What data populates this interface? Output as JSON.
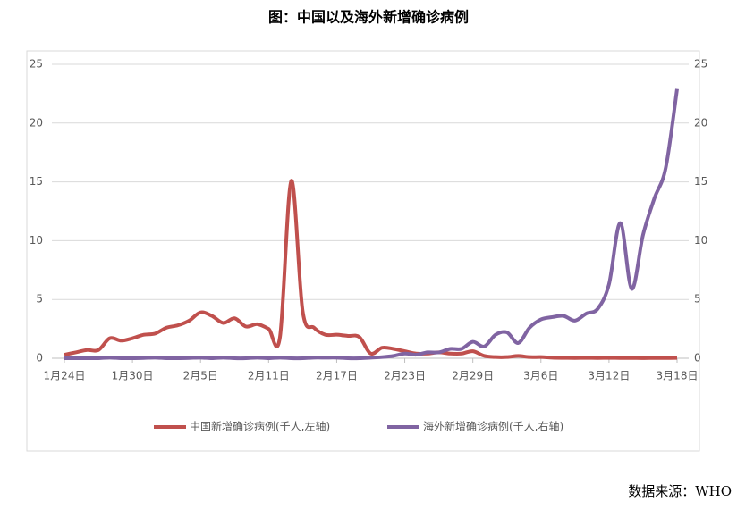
{
  "chart_data": {
    "type": "line",
    "title": "图：中国以及海外新增确诊病例",
    "source": "数据来源：WHO",
    "categories": [
      "1月24日",
      null,
      null,
      null,
      null,
      null,
      "1月30日",
      null,
      null,
      null,
      null,
      null,
      "2月5日",
      null,
      null,
      null,
      null,
      null,
      "2月11日",
      null,
      null,
      null,
      null,
      null,
      "2月17日",
      null,
      null,
      null,
      null,
      null,
      "2月23日",
      null,
      null,
      null,
      null,
      null,
      "2月29日",
      null,
      null,
      null,
      null,
      null,
      "3月6日",
      null,
      null,
      null,
      null,
      null,
      "3月12日",
      null,
      null,
      null,
      null,
      null,
      "3月18日"
    ],
    "series": [
      {
        "name": "中国新增确诊病例(千人,左轴)",
        "color": "#c0504d",
        "axis": "y",
        "values": [
          0.3,
          0.5,
          0.7,
          0.7,
          1.7,
          1.5,
          1.7,
          2.0,
          2.1,
          2.6,
          2.8,
          3.2,
          3.9,
          3.6,
          3.0,
          3.4,
          2.7,
          2.9,
          2.5,
          1.8,
          15.1,
          4.0,
          2.6,
          2.0,
          2.0,
          1.9,
          1.8,
          0.4,
          0.9,
          0.8,
          0.6,
          0.4,
          0.4,
          0.5,
          0.4,
          0.4,
          0.6,
          0.2,
          0.1,
          0.1,
          0.2,
          0.1,
          0.1,
          0.05,
          0.03,
          0.02,
          0.03,
          0.02,
          0.03,
          0.02,
          0.02,
          0.01,
          0.02,
          0.02,
          0.03
        ]
      },
      {
        "name": "海外新增确诊病例(千人,右轴)",
        "color": "#8064a2",
        "axis": "y2",
        "values": [
          0.0,
          0.0,
          0.0,
          0.0,
          0.05,
          0.0,
          0.0,
          0.02,
          0.05,
          0.0,
          0.0,
          0.02,
          0.05,
          0.0,
          0.05,
          0.0,
          0.0,
          0.05,
          0.0,
          0.05,
          0.0,
          0.0,
          0.05,
          0.05,
          0.05,
          0.0,
          0.0,
          0.05,
          0.1,
          0.2,
          0.4,
          0.3,
          0.5,
          0.5,
          0.8,
          0.8,
          1.4,
          1.0,
          2.0,
          2.2,
          1.3,
          2.6,
          3.3,
          3.5,
          3.6,
          3.2,
          3.8,
          4.2,
          6.3,
          11.5,
          5.9,
          10.5,
          13.6,
          16.2,
          22.9
        ]
      }
    ],
    "ylim": [
      0,
      25
    ],
    "yticks": [
      0,
      5,
      10,
      15,
      20,
      25
    ],
    "y2lim": [
      0,
      25
    ],
    "y2ticks": [
      0,
      5,
      10,
      15,
      20,
      25
    ],
    "grid": true
  }
}
